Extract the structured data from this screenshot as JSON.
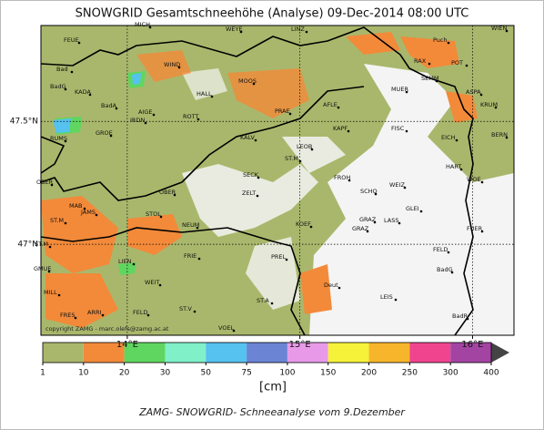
{
  "title": "SNOWGRID Gesamtschneehöhe (Analyse) 09-Dec-2014 08:00 UTC",
  "map": {
    "xlim": [
      13.5,
      16.24
    ],
    "ylim": [
      46.63,
      47.89
    ],
    "xticks": [
      {
        "value": 14,
        "label": "14°E"
      },
      {
        "value": 15,
        "label": "15°E"
      },
      {
        "value": 16,
        "label": "16°E"
      }
    ],
    "yticks": [
      {
        "value": 47.5,
        "label": "47.5°N"
      },
      {
        "value": 47,
        "label": "47°N"
      }
    ],
    "grid": true,
    "stations": [
      "MICH",
      "WEYE",
      "LINZ",
      "WIEN",
      "FEUE",
      "Puch",
      "Bad",
      "WIND",
      "MOOS",
      "RAX",
      "POT",
      "BadG",
      "HALL",
      "SEMM",
      "MUER",
      "ASPA",
      "KADA",
      "BadA",
      "AIGE",
      "AFLE",
      "KRUM",
      "IRDN",
      "ROTT",
      "PRAE",
      "KAPF",
      "FISC",
      "BERN",
      "RUMS",
      "GROE",
      "KALV",
      "EICH",
      "LEOB",
      "ST.M",
      "HART",
      "FROH",
      "SECK",
      "OBER",
      "WOE",
      "SCHO",
      "WEIZ",
      "ZELT",
      "OBER",
      "MAB",
      "JAMS",
      "STOL",
      "GLEI",
      "GRAZ",
      "LASS",
      "KOEF",
      "ST.M",
      "NEUM",
      "FUER",
      "GRAZ",
      "ST.M",
      "FELD",
      "FRIE",
      "PREL",
      "LIEN",
      "BadG",
      "GMUE",
      "WEIT",
      "Deut",
      "MILL",
      "LEIS",
      "FRES",
      "ARRI",
      "FELD",
      "ST.V",
      "ST.A",
      "VOEL",
      "BadR"
    ],
    "copyright": "copyright ZAMG - marc.olefs@zamg.ac.at"
  },
  "colorbar": {
    "ticks": [
      1,
      10,
      20,
      30,
      50,
      75,
      100,
      150,
      200,
      250,
      300,
      400
    ],
    "colors": [
      "#a9b76c",
      "#f28a3a",
      "#5fd65f",
      "#80f0c8",
      "#55c2f0",
      "#6c84d4",
      "#e89ae8",
      "#f6f23a",
      "#f7b52c",
      "#f0448e",
      "#a344a3"
    ],
    "unit": "[cm]"
  },
  "caption": "ZAMG- SNOWGRID- Schneeanalyse vom 9.Dezember"
}
